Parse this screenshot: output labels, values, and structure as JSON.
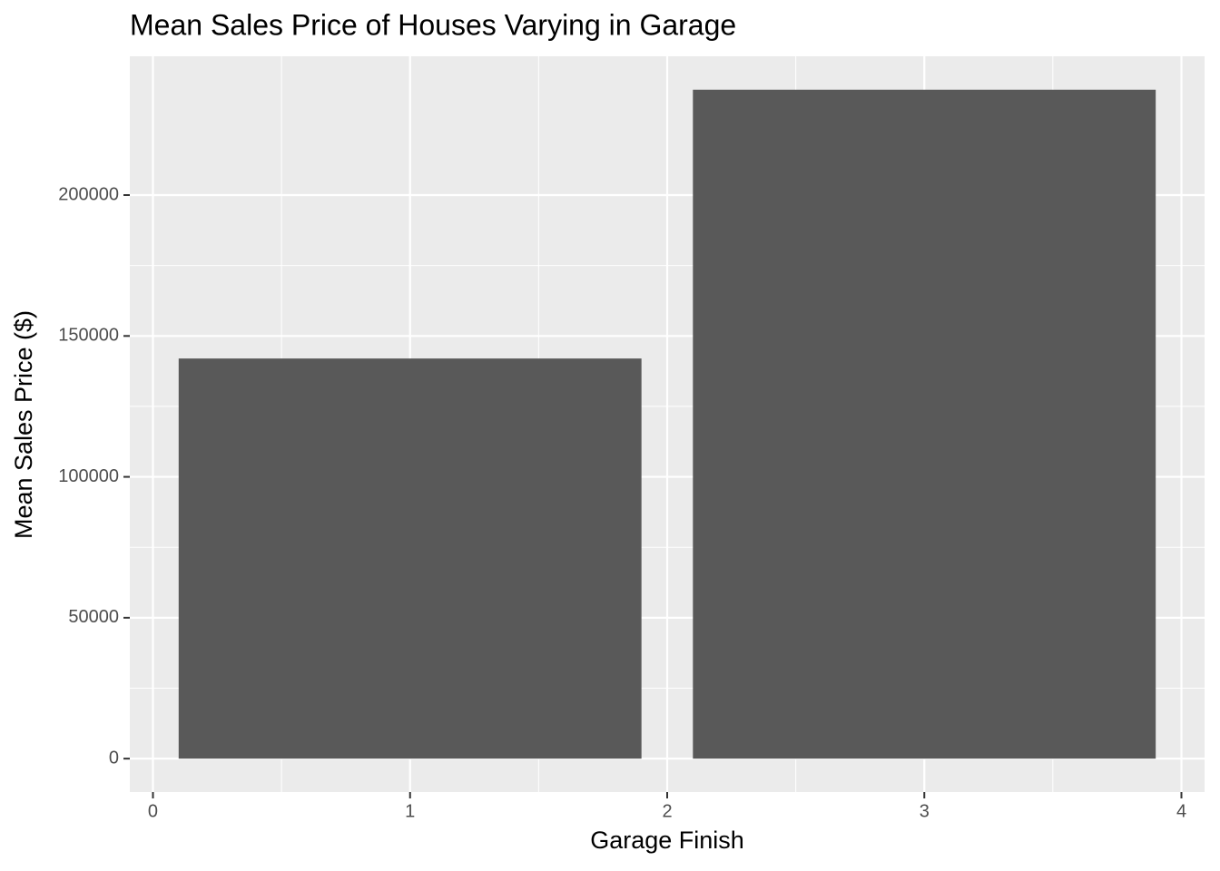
{
  "chart_data": {
    "type": "bar",
    "title": "Mean Sales Price of Houses Varying in Garage",
    "x_label": "Garage Finish",
    "y_label": "Mean Sales Price ($)",
    "x": [
      1,
      3
    ],
    "values": [
      142000,
      237400
    ],
    "color": "#595959",
    "xlim": [
      -0.09,
      4.09
    ],
    "xticks": [
      0,
      1,
      2,
      3,
      4
    ],
    "ylim": [
      -11870,
      249270
    ],
    "yticks": [
      0,
      50000,
      100000,
      150000,
      200000
    ],
    "grid": true
  }
}
